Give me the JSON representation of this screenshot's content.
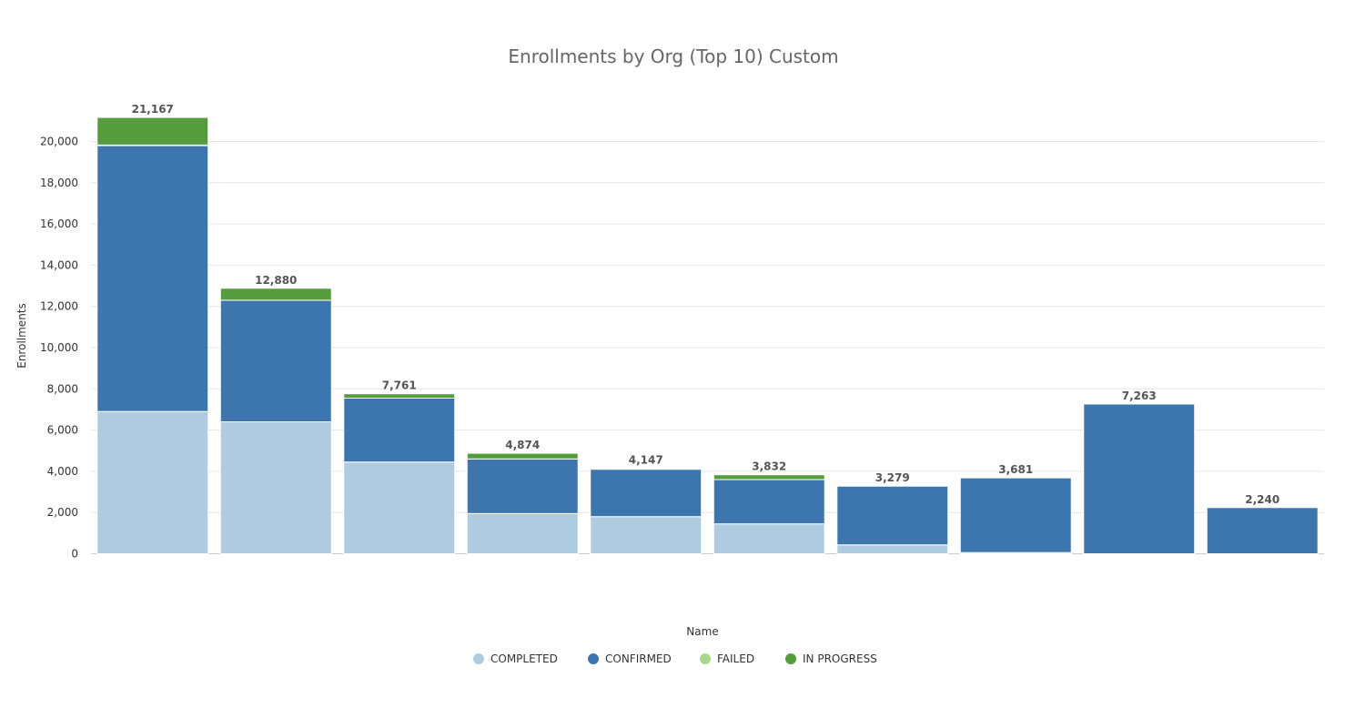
{
  "colors": {
    "completed": "#afcbe0",
    "confirmed": "#3d75ae",
    "failed": "#a7d78c",
    "in_progress": "#559c3c",
    "grid": "#e6e6e6"
  },
  "chart_data": {
    "type": "bar",
    "stacked": true,
    "title": "Enrollments by Org (Top 10) Custom",
    "xlabel": "Name",
    "ylabel": "Enrollments",
    "ylim": [
      0,
      21500
    ],
    "yticks": [
      0,
      2000,
      4000,
      6000,
      8000,
      10000,
      12000,
      14000,
      16000,
      18000,
      20000
    ],
    "ytick_labels": [
      "0",
      "2,000",
      "4,000",
      "6,000",
      "8,000",
      "10,000",
      "12,000",
      "14,000",
      "16,000",
      "18,000",
      "20,000"
    ],
    "categories": [
      "",
      "",
      "",
      "",
      "",
      "",
      "",
      "",
      "",
      ""
    ],
    "legend_position": "bottom-center",
    "grid": true,
    "series": [
      {
        "name": "COMPLETED",
        "color_key": "completed",
        "values": [
          6900,
          6400,
          4450,
          1950,
          1800,
          1450,
          430,
          60,
          0,
          0
        ]
      },
      {
        "name": "CONFIRMED",
        "color_key": "confirmed",
        "values": [
          12900,
          5900,
          3100,
          2650,
          2300,
          2150,
          2849,
          3621,
          7263,
          2240
        ]
      },
      {
        "name": "FAILED",
        "color_key": "failed",
        "values": [
          30,
          0,
          0,
          0,
          0,
          0,
          0,
          0,
          0,
          0
        ]
      },
      {
        "name": "IN PROGRESS",
        "color_key": "in_progress",
        "values": [
          1337,
          580,
          211,
          274,
          47,
          232,
          0,
          0,
          0,
          0
        ]
      }
    ],
    "totals": [
      21167,
      12880,
      7761,
      4874,
      4147,
      3832,
      3279,
      3681,
      7263,
      2240
    ],
    "total_labels": [
      "21,167",
      "12,880",
      "7,761",
      "4,874",
      "4,147",
      "3,832",
      "3,279",
      "3,681",
      "7,263",
      "2,240"
    ]
  }
}
